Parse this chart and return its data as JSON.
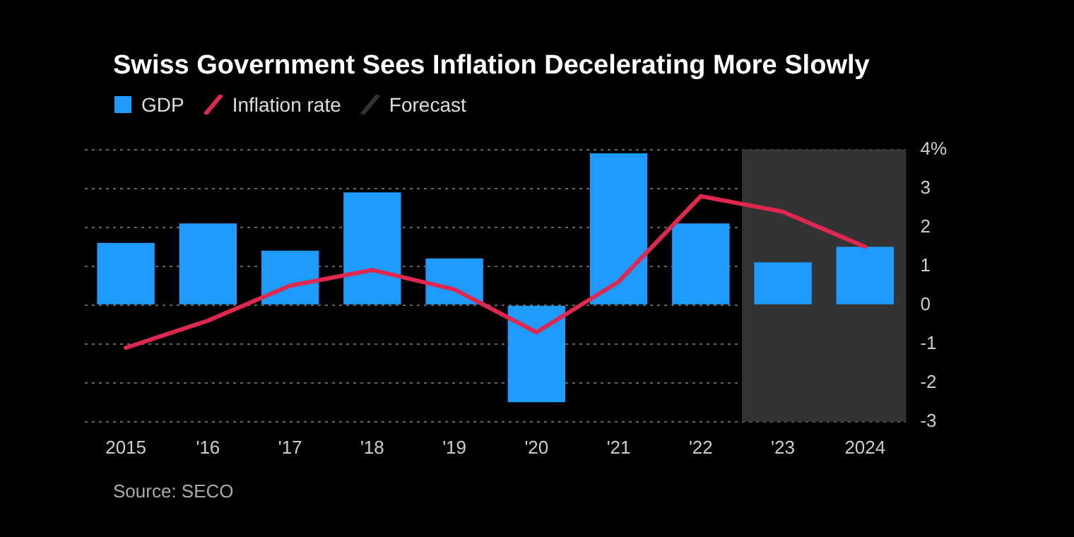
{
  "chart_data": {
    "type": "bar",
    "title": "Swiss Government Sees Inflation Decelerating More Slowly",
    "categories": [
      "2015",
      "'16",
      "'17",
      "'18",
      "'19",
      "'20",
      "'21",
      "'22",
      "'23",
      "2024"
    ],
    "series": [
      {
        "name": "GDP",
        "color": "#1e9bff",
        "values": [
          1.6,
          2.1,
          1.4,
          2.9,
          1.2,
          -2.5,
          3.9,
          2.1,
          1.1,
          1.5
        ]
      },
      {
        "name": "Inflation rate",
        "type": "line",
        "color": "#e0274f",
        "values": [
          -1.1,
          -0.4,
          0.5,
          0.9,
          0.4,
          -0.7,
          0.6,
          2.8,
          2.4,
          1.5
        ]
      }
    ],
    "bands": [
      {
        "axis": "x",
        "from": "'23",
        "to": "2024",
        "label": "Forecast",
        "color": "#333333"
      }
    ],
    "ylim": [
      -3,
      4
    ],
    "yticks": [
      -3,
      -2,
      -1,
      0,
      1,
      2,
      3,
      {
        "value": 4,
        "label": "4%"
      }
    ],
    "grid": "y",
    "legend": "top left",
    "marker": "none",
    "annotations": [
      "Source: SECO"
    ]
  }
}
